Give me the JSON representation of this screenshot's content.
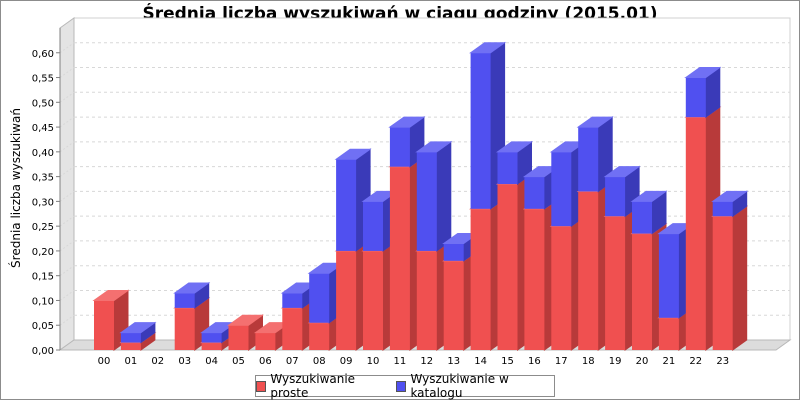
{
  "chart_data": {
    "type": "bar",
    "stacked": true,
    "three_d": true,
    "title": "Średnia liczba wyszukiwań w ciągu godziny (2015.01)",
    "xlabel": "",
    "ylabel": "Średnia liczba wyszukiwań",
    "ylim": [
      0,
      0.65
    ],
    "yticks": [
      "0,00",
      "0,05",
      "0,10",
      "0,15",
      "0,20",
      "0,25",
      "0,30",
      "0,35",
      "0,40",
      "0,45",
      "0,50",
      "0,55",
      "0,60"
    ],
    "grid": true,
    "legend_position": "bottom",
    "categories": [
      "00",
      "01",
      "02",
      "03",
      "04",
      "05",
      "06",
      "07",
      "08",
      "09",
      "10",
      "11",
      "12",
      "13",
      "14",
      "15",
      "16",
      "17",
      "18",
      "19",
      "20",
      "21",
      "22",
      "23"
    ],
    "series": [
      {
        "name": "Wyszukiwanie proste",
        "color": "#f05050",
        "values": [
          0.1,
          0.015,
          0.0,
          0.085,
          0.015,
          0.05,
          0.035,
          0.085,
          0.055,
          0.2,
          0.2,
          0.37,
          0.2,
          0.18,
          0.285,
          0.335,
          0.285,
          0.25,
          0.32,
          0.27,
          0.235,
          0.065,
          0.47,
          0.27
        ]
      },
      {
        "name": "Wyszukiwanie w katalogu",
        "color": "#5050f0",
        "values": [
          0.0,
          0.02,
          0.0,
          0.03,
          0.02,
          0.0,
          0.0,
          0.03,
          0.1,
          0.185,
          0.1,
          0.08,
          0.2,
          0.035,
          0.315,
          0.065,
          0.065,
          0.15,
          0.13,
          0.08,
          0.065,
          0.17,
          0.08,
          0.03
        ]
      }
    ]
  }
}
